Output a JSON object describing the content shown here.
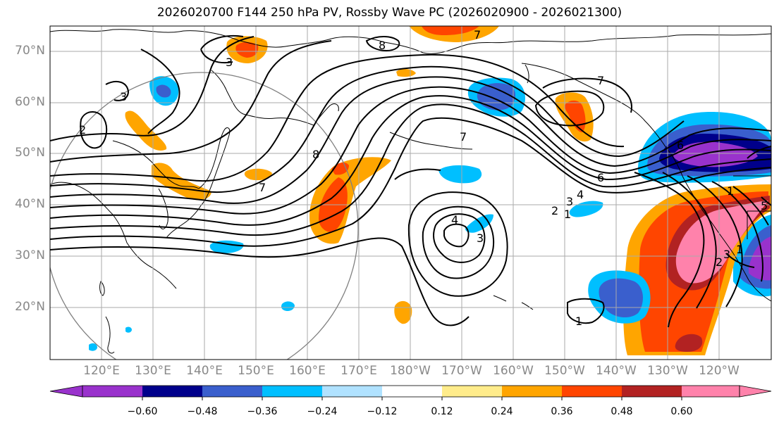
{
  "title": "2026020700 F144 250 hPa PV, Rossby Wave PC (2026020900 - 2026021300)",
  "lat_labels": [
    "70°N",
    "60°N",
    "50°N",
    "40°N",
    "30°N",
    "20°N"
  ],
  "lon_labels": [
    "120°E",
    "130°E",
    "140°E",
    "150°E",
    "160°E",
    "170°E",
    "180°W",
    "170°W",
    "160°W",
    "150°W",
    "140°W",
    "130°W",
    "120°W"
  ],
  "colorbar": {
    "ticks": [
      "−0.60",
      "−0.48",
      "−0.36",
      "−0.24",
      "−0.12",
      "0.12",
      "0.24",
      "0.36",
      "0.48",
      "0.60"
    ],
    "colors": [
      "#9932cc",
      "#00008b",
      "#3a5fcd",
      "#00bfff",
      "#b0e2ff",
      "#ffffff",
      "#ffec8b",
      "#ffa500",
      "#ff4500",
      "#b22222",
      "#ff82ab"
    ]
  },
  "contour_labels": [
    "3",
    "8",
    "7",
    "3",
    "2",
    "8",
    "7",
    "7",
    "6",
    "4",
    "3",
    "2",
    "1",
    "4",
    "3",
    "1",
    "1",
    "2",
    "3",
    "5",
    "1",
    "6",
    "7"
  ],
  "map_extent": {
    "lon": [
      110,
      250
    ],
    "lat": [
      10,
      75
    ]
  }
}
